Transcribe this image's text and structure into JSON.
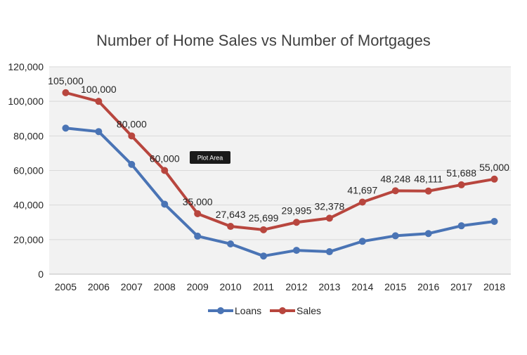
{
  "colors": {
    "loans": "#4a74b5",
    "sales": "#b8463e",
    "plot_background": "#f2f2f2",
    "grid": "#d9d9d9",
    "tooltip_background": "#1a1a1a"
  },
  "tooltip": {
    "label": "Plot Area"
  },
  "chart_data": {
    "type": "line",
    "title": "Number of Home Sales vs Number of Mortgages",
    "xlabel": "",
    "ylabel": "",
    "categories": [
      "2005",
      "2006",
      "2007",
      "2008",
      "2009",
      "2010",
      "2011",
      "2012",
      "2013",
      "2014",
      "2015",
      "2016",
      "2017",
      "2018"
    ],
    "ylim": [
      0,
      120000
    ],
    "yticks": [
      0,
      20000,
      40000,
      60000,
      80000,
      100000,
      120000
    ],
    "ytick_labels": [
      "0",
      "20,000",
      "40,000",
      "60,000",
      "80,000",
      "100,000",
      "120,000"
    ],
    "grid": true,
    "legend_position": "bottom",
    "series": [
      {
        "name": "Loans",
        "color": "#4a74b5",
        "values": [
          84500,
          82500,
          63500,
          40500,
          22000,
          17500,
          10500,
          13800,
          13000,
          19000,
          22200,
          23500,
          28000,
          30500
        ],
        "labels": []
      },
      {
        "name": "Sales",
        "color": "#b8463e",
        "values": [
          105000,
          100000,
          80000,
          60000,
          35000,
          27643,
          25699,
          29995,
          32378,
          41697,
          48248,
          48111,
          51688,
          55000
        ],
        "labels": [
          "105,000",
          "100,000",
          "80,000",
          "60,000",
          "35,000",
          "27,643",
          "25,699",
          "29,995",
          "32,378",
          "41,697",
          "48,248",
          "48,111",
          "51,688",
          "55,000"
        ]
      }
    ]
  }
}
